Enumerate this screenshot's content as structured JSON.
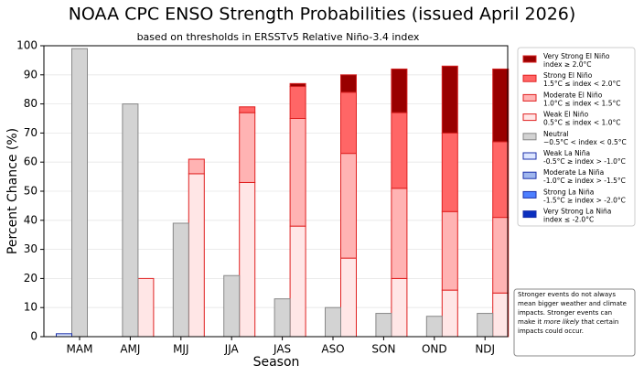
{
  "chart_data": {
    "type": "bar",
    "title": "NOAA CPC ENSO Strength Probabilities (issued April 2026)",
    "subtitle": "based on thresholds in ERSSTv5 Relative Niño-3.4 index",
    "x_label": "Season",
    "y_label": "Percent Chance (%)",
    "categories": [
      "MAM",
      "AMJ",
      "MJJ",
      "JJA",
      "JAS",
      "ASO",
      "SON",
      "OND",
      "NDJ"
    ],
    "ylim": [
      0,
      100
    ],
    "yticks": [
      0,
      10,
      20,
      30,
      40,
      50,
      60,
      70,
      80,
      90,
      100
    ],
    "grid": true,
    "series": [
      {
        "name": "Very Strong El Niño",
        "range": "index ≥ 2.0°C",
        "stack": "el-nino",
        "color": "#990000",
        "edge": "#d42020",
        "values": [
          0,
          0,
          0,
          0,
          1,
          6,
          15,
          23,
          25
        ]
      },
      {
        "name": "Strong El Niño",
        "range": "1.5°C ≤ index < 2.0°C",
        "stack": "el-nino",
        "color": "#ff6666",
        "edge": "#e02020",
        "values": [
          0,
          0,
          0,
          2,
          11,
          21,
          26,
          27,
          26
        ]
      },
      {
        "name": "Moderate El Niño",
        "range": "1.0°C ≤ index < 1.5°C",
        "stack": "el-nino",
        "color": "#ffb3b3",
        "edge": "#e02020",
        "values": [
          0,
          0,
          5,
          24,
          37,
          36,
          31,
          27,
          26
        ]
      },
      {
        "name": "Weak El Niño",
        "range": "0.5°C ≤ index < 1.0°C",
        "stack": "el-nino",
        "color": "#ffe6e6",
        "edge": "#e02020",
        "values": [
          0,
          20,
          56,
          53,
          38,
          27,
          20,
          16,
          15
        ]
      },
      {
        "name": "Neutral",
        "range": "−0.5°C < index < 0.5°C",
        "stack": "neutral",
        "color": "#d3d3d3",
        "edge": "#888888",
        "values": [
          99,
          80,
          39,
          21,
          13,
          10,
          8,
          7,
          8
        ]
      },
      {
        "name": "Weak La Niña",
        "range": "-0.5°C ≥ index > -1.0°C",
        "stack": "la-nina",
        "color": "#dde6ff",
        "edge": "#1a2faa",
        "values": [
          1,
          0,
          0,
          0,
          0,
          0,
          0,
          0,
          0
        ]
      },
      {
        "name": "Moderate La Niña",
        "range": "-1.0°C ≥ index > -1.5°C",
        "stack": "la-nina",
        "color": "#9fb6ee",
        "edge": "#1a2faa",
        "values": [
          0,
          0,
          0,
          0,
          0,
          0,
          0,
          0,
          0
        ]
      },
      {
        "name": "Strong La Niña",
        "range": "-1.5°C ≥ index > -2.0°C",
        "stack": "la-nina",
        "color": "#4d7fff",
        "edge": "#1a2faa",
        "values": [
          0,
          0,
          0,
          0,
          0,
          0,
          0,
          0,
          0
        ]
      },
      {
        "name": "Very Strong La Niña",
        "range": "index ≤ -2.0°C",
        "stack": "la-nina",
        "color": "#0a2fbf",
        "edge": "#1a2faa",
        "values": [
          0,
          0,
          0,
          0,
          0,
          0,
          0,
          0,
          0
        ]
      }
    ],
    "note": [
      "Stronger events do not always",
      "mean bigger weather and climate",
      "impacts. Stronger events can",
      [
        "make it ",
        "more likely",
        " that certain"
      ],
      "impacts could occur."
    ]
  }
}
